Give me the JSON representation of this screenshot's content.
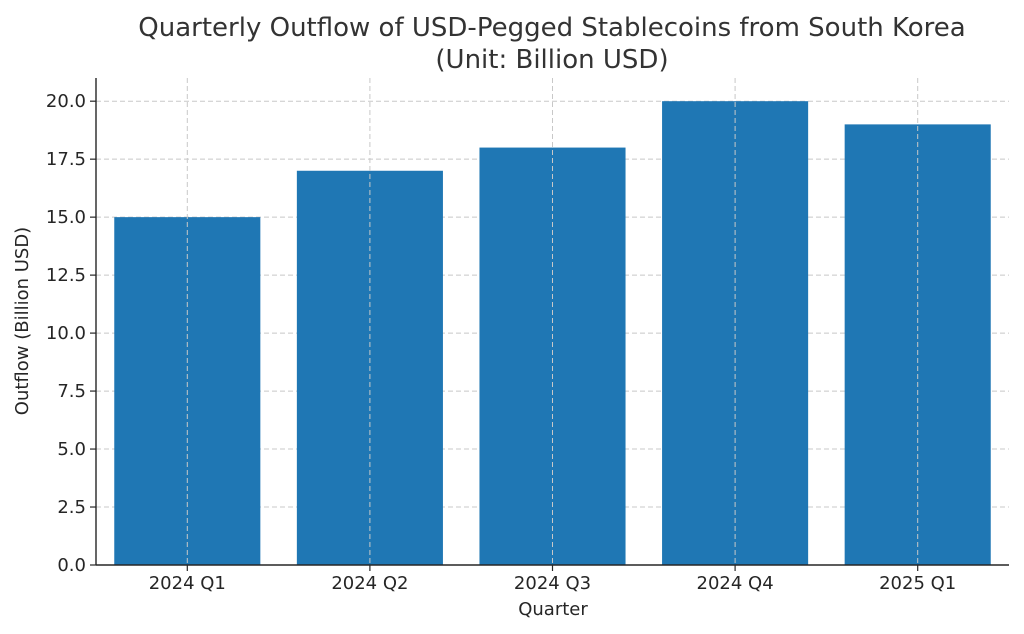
{
  "chart_data": {
    "type": "bar",
    "title_lines": [
      "Quarterly Outflow of USD-Pegged Stablecoins from South Korea",
      "(Unit: Billion USD)"
    ],
    "xlabel": "Quarter",
    "ylabel": "Outflow (Billion USD)",
    "categories": [
      "2024 Q1",
      "2024 Q2",
      "2024 Q3",
      "2024 Q4",
      "2025 Q1"
    ],
    "values": [
      15,
      17,
      18,
      20,
      19
    ],
    "ylim": [
      0,
      21
    ],
    "yticks": [
      0,
      2.5,
      5,
      7.5,
      10,
      12.5,
      15,
      17.5,
      20
    ],
    "ytick_labels": [
      "0.0",
      "2.5",
      "5.0",
      "7.5",
      "10.0",
      "12.5",
      "15.0",
      "17.5",
      "20.0"
    ],
    "grid": true,
    "bar_color": "#1f77b4"
  }
}
